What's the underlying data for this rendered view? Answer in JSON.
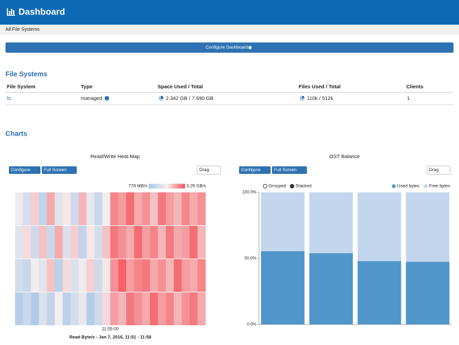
{
  "header": {
    "title": "Dashboard"
  },
  "breadcrumb": "All File Systems",
  "configure_dashboard": "Configure Dashboard",
  "file_systems": {
    "heading": "File Systems",
    "columns": [
      "File System",
      "Type",
      "Space Used / Total",
      "Files Used / Total",
      "Clients"
    ],
    "rows": [
      [
        "fs",
        "managed",
        "2.342 GB / 7.690 GB",
        "110k / 512k",
        "1"
      ]
    ]
  },
  "charts_heading": "Charts",
  "panel_buttons": {
    "configure": "Configure",
    "full_screen": "Full Screen",
    "drag": "Drag"
  },
  "chart_data": [
    {
      "type": "heatmap",
      "title": "Read/Write Heat Map",
      "scale": {
        "min": {
          "value": 778,
          "label": "778 MB/s"
        },
        "max": {
          "value": 3290,
          "label": "3.29 GB/s"
        }
      },
      "colors": [
        "#a7c7e7",
        "#f6eeee",
        "#f4565c"
      ],
      "xtick_label": "11:55:00",
      "xlabel": "Read Byte/s - Jan 7, 2016, 11:51 - 11:58",
      "values": [
        [
          1900,
          1500,
          2300,
          1200,
          2600,
          1700,
          2100,
          1400,
          2500,
          1800,
          1300,
          2000,
          2900,
          2700,
          3100,
          2600,
          2800,
          2400,
          3000,
          2700,
          2500,
          2900,
          2600,
          2800
        ],
        [
          1700,
          2200,
          1400,
          2400,
          1300,
          2600,
          1600,
          2300,
          1200,
          2100,
          1500,
          2400,
          3000,
          2800,
          2600,
          3100,
          2700,
          2900,
          2500,
          3000,
          2600,
          2700,
          3100,
          2500
        ],
        [
          1500,
          1300,
          2000,
          1700,
          2400,
          1100,
          2200,
          1600,
          1900,
          2300,
          1400,
          2100,
          2800,
          3200,
          2700,
          2900,
          3000,
          2600,
          2800,
          2500,
          3100,
          2700,
          2600,
          2900
        ],
        [
          1000,
          1300,
          900,
          1600,
          1200,
          2000,
          1100,
          1500,
          1800,
          1000,
          1400,
          2200,
          2700,
          2500,
          3000,
          2800,
          2600,
          3100,
          2700,
          2900,
          2500,
          2800,
          3000,
          2600
        ]
      ]
    },
    {
      "type": "stacked_bar",
      "title": "OST Balance",
      "modes": [
        "Grouped",
        "Stacked"
      ],
      "mode": "Stacked",
      "categories": [
        null,
        null,
        null,
        null
      ],
      "series": [
        {
          "name": "Used bytes",
          "color": "#5096c9",
          "values": [
            55.5,
            54,
            48,
            47.5
          ]
        },
        {
          "name": "Free bytes",
          "color": "#c2d6ee",
          "values": [
            44.5,
            46,
            52,
            52.5
          ]
        }
      ],
      "ylim": [
        0,
        100
      ],
      "yticks": [
        {
          "value": 0,
          "label": "0.0%"
        },
        {
          "value": 50,
          "label": "50.0%"
        },
        {
          "value": 100,
          "label": "100.0%"
        }
      ],
      "legend": "top-right"
    }
  ]
}
